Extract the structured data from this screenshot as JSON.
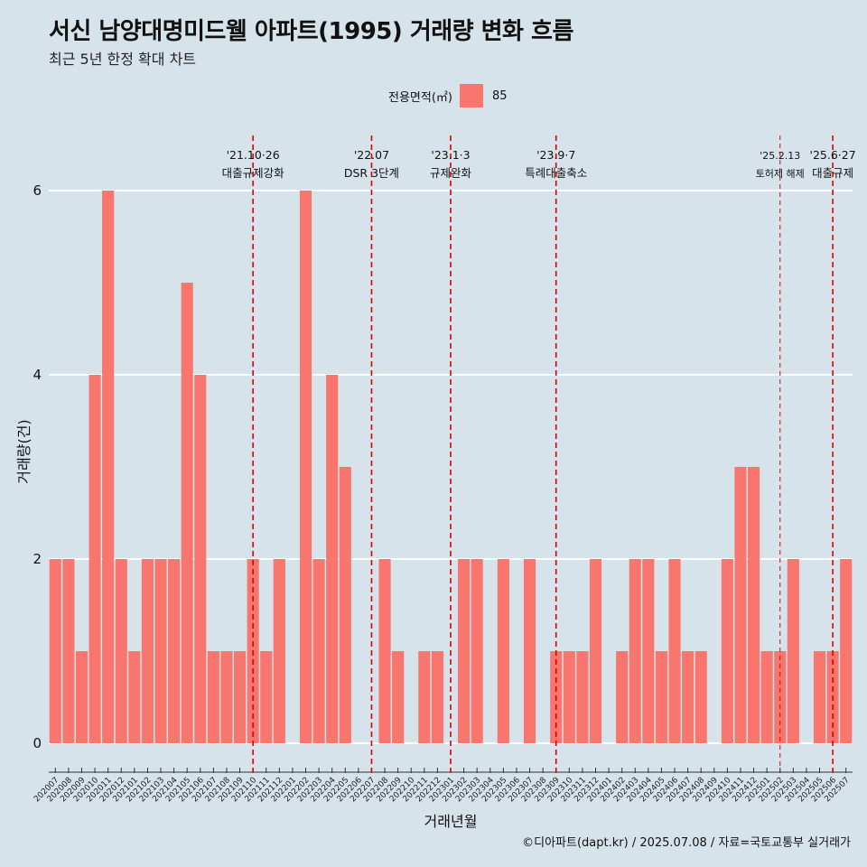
{
  "title": "서신 남양대명미드웰 아파트(1995) 거래량 변화 흐름",
  "subtitle": "최근 5년 한정 확대 차트",
  "legend": {
    "label": "전용면적(㎡)",
    "item": "85"
  },
  "caption": "©디아파트(dapt.kr) / 2025.07.08 / 자료=국토교통부 실거래가",
  "colors": {
    "background": "#d6e3ea",
    "bar": "#f8766d",
    "event_line": "#e00000",
    "grid": "#ffffff"
  },
  "chart_data": {
    "type": "bar",
    "xlabel": "거래년월",
    "ylabel": "거래량(건)",
    "ylim": [
      0,
      6
    ],
    "yticks": [
      0,
      2,
      4,
      6
    ],
    "grid": true,
    "legend_position": "top",
    "categories": [
      "202007",
      "202008",
      "202009",
      "202010",
      "202011",
      "202012",
      "202101",
      "202102",
      "202103",
      "202104",
      "202105",
      "202106",
      "202107",
      "202108",
      "202109",
      "202110",
      "202111",
      "202112",
      "202201",
      "202202",
      "202203",
      "202204",
      "202205",
      "202206",
      "202207",
      "202208",
      "202209",
      "202210",
      "202211",
      "202212",
      "202301",
      "202302",
      "202303",
      "202304",
      "202305",
      "202306",
      "202307",
      "202308",
      "202309",
      "202310",
      "202311",
      "202312",
      "202401",
      "202402",
      "202403",
      "202404",
      "202405",
      "202406",
      "202407",
      "202408",
      "202409",
      "202410",
      "202411",
      "202412",
      "202501",
      "202502",
      "202503",
      "202504",
      "202505",
      "202506",
      "202507"
    ],
    "series": [
      {
        "name": "85",
        "values": [
          2,
          2,
          1,
          4,
          6,
          2,
          1,
          2,
          2,
          2,
          5,
          4,
          1,
          1,
          1,
          2,
          1,
          2,
          0,
          6,
          2,
          4,
          3,
          0,
          0,
          2,
          1,
          0,
          1,
          1,
          0,
          2,
          2,
          0,
          2,
          0,
          2,
          0,
          1,
          1,
          1,
          2,
          0,
          1,
          2,
          2,
          1,
          2,
          1,
          1,
          0,
          2,
          3,
          3,
          1,
          1,
          2,
          0,
          1,
          1,
          2
        ]
      }
    ],
    "events": [
      {
        "date": "'21.10·26",
        "label": "대출규제강화",
        "category": "202110",
        "style": "dashed"
      },
      {
        "date": "'22.07",
        "label": "DSR 3단계",
        "category": "202207",
        "style": "dashed"
      },
      {
        "date": "'23.1·3",
        "label": "규제완화",
        "category": "202301",
        "style": "dashed"
      },
      {
        "date": "'23.9·7",
        "label": "특례대출축소",
        "category": "202309",
        "style": "dashed"
      },
      {
        "date": "'25.2.13",
        "label": "토허제 해제",
        "category": "202502",
        "style": "thin"
      },
      {
        "date": "'25.6·27",
        "label": "대출규제",
        "category": "202506",
        "style": "dashed"
      }
    ]
  }
}
